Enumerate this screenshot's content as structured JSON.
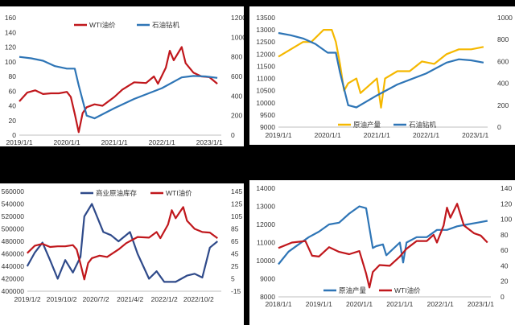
{
  "colors": {
    "wti": "#c0171c",
    "rigs": "#2e75b6",
    "production": "#f5b800",
    "inventory": "#2f4a8a"
  },
  "chart_data": [
    {
      "type": "line",
      "title": "",
      "legend": "top-center",
      "x_ticks": [
        "2019/1/1",
        "2020/1/1",
        "2021/1/1",
        "2022/1/1",
        "2023/1/1"
      ],
      "x_range": [
        "2019-01-01",
        "2023-04-01"
      ],
      "yleft_ticks": [
        "0",
        "20",
        "40",
        "60",
        "80",
        "100",
        "120",
        "140",
        "160"
      ],
      "yleft_lim": [
        0,
        160
      ],
      "yright_ticks": [
        "0",
        "200",
        "400",
        "600",
        "800",
        "1000",
        "1200"
      ],
      "yright_lim": [
        0,
        1200
      ],
      "series": [
        {
          "name": "WTI油价",
          "axis": "left",
          "color": "#c0171c",
          "x": [
            "2019-01",
            "2019-03",
            "2019-05",
            "2019-07",
            "2019-09",
            "2019-11",
            "2020-01",
            "2020-02",
            "2020-03",
            "2020-04",
            "2020-05",
            "2020-06",
            "2020-08",
            "2020-10",
            "2021-01",
            "2021-03",
            "2021-06",
            "2021-09",
            "2021-11",
            "2021-12",
            "2022-02",
            "2022-03",
            "2022-04",
            "2022-06",
            "2022-07",
            "2022-09",
            "2022-11",
            "2023-01",
            "2023-03"
          ],
          "y": [
            46,
            58,
            61,
            56,
            57,
            57,
            59,
            52,
            29,
            4,
            30,
            38,
            42,
            40,
            52,
            62,
            72,
            71,
            80,
            70,
            92,
            115,
            102,
            120,
            98,
            85,
            80,
            79,
            70
          ]
        },
        {
          "name": "石油钻机",
          "axis": "right",
          "color": "#2e75b6",
          "x": [
            "2019-01",
            "2019-04",
            "2019-07",
            "2019-10",
            "2020-01",
            "2020-03",
            "2020-04",
            "2020-06",
            "2020-08",
            "2021-01",
            "2021-06",
            "2022-01",
            "2022-06",
            "2022-09",
            "2022-12",
            "2023-03"
          ],
          "y": [
            800,
            785,
            760,
            705,
            680,
            680,
            510,
            200,
            172,
            275,
            370,
            480,
            590,
            605,
            600,
            585
          ]
        }
      ]
    },
    {
      "type": "line",
      "title": "",
      "legend": "bottom-center",
      "x_ticks": [
        "2019/1/1",
        "2020/1/1",
        "2021/1/1",
        "2022/1/1",
        "2023/1/1"
      ],
      "x_range": [
        "2019-01-01",
        "2023-04-01"
      ],
      "yleft_ticks": [
        "9000",
        "9500",
        "10000",
        "10500",
        "11000",
        "11500",
        "12000",
        "12500",
        "13000",
        "13500"
      ],
      "yleft_lim": [
        9000,
        13500
      ],
      "yright_ticks": [
        "0",
        "200",
        "400",
        "600",
        "800",
        "1000"
      ],
      "yright_lim": [
        0,
        1000
      ],
      "series": [
        {
          "name": "原油产量",
          "axis": "left",
          "color": "#f5b800",
          "x": [
            "2019-01",
            "2019-04",
            "2019-07",
            "2019-09",
            "2019-12",
            "2020-02",
            "2020-03",
            "2020-04",
            "2020-05",
            "2020-06",
            "2020-08",
            "2020-09",
            "2021-01",
            "2021-02",
            "2021-03",
            "2021-06",
            "2021-09",
            "2021-12",
            "2022-03",
            "2022-06",
            "2022-09",
            "2022-12",
            "2023-03"
          ],
          "y": [
            11900,
            12200,
            12500,
            12500,
            13000,
            13000,
            12500,
            11600,
            10500,
            10800,
            11000,
            10400,
            11000,
            9800,
            11000,
            11300,
            11300,
            11700,
            11600,
            12000,
            12200,
            12200,
            12300
          ]
        },
        {
          "name": "石油钻机",
          "axis": "right",
          "color": "#2e75b6",
          "x": [
            "2019-01",
            "2019-04",
            "2019-07",
            "2019-10",
            "2020-01",
            "2020-03",
            "2020-04",
            "2020-06",
            "2020-08",
            "2021-01",
            "2021-06",
            "2022-01",
            "2022-06",
            "2022-09",
            "2022-12",
            "2023-03"
          ],
          "y": [
            860,
            840,
            810,
            760,
            680,
            680,
            500,
            200,
            180,
            290,
            390,
            490,
            590,
            620,
            610,
            590
          ]
        }
      ]
    },
    {
      "type": "line",
      "title": "",
      "legend": "top-center",
      "x_ticks": [
        "2019/1/2",
        "2019/10/2",
        "2020/7/2",
        "2021/4/2",
        "2022/1/2",
        "2022/10/2"
      ],
      "x_range": [
        "2019-01-02",
        "2023-04-01"
      ],
      "yleft_ticks": [
        "400000",
        "420000",
        "440000",
        "460000",
        "480000",
        "500000",
        "520000",
        "540000",
        "560000"
      ],
      "yleft_lim": [
        400000,
        560000
      ],
      "yright_ticks": [
        "-15",
        "5",
        "25",
        "45",
        "65",
        "85",
        "105",
        "125",
        "145"
      ],
      "yright_lim": [
        -15,
        145
      ],
      "series": [
        {
          "name": "商业原油库存",
          "axis": "left",
          "color": "#2f4a8a",
          "x": [
            "2019-01",
            "2019-03",
            "2019-05",
            "2019-07",
            "2019-09",
            "2019-11",
            "2020-01",
            "2020-03",
            "2020-04",
            "2020-06",
            "2020-09",
            "2020-11",
            "2021-01",
            "2021-04",
            "2021-06",
            "2021-09",
            "2021-11",
            "2022-01",
            "2022-04",
            "2022-07",
            "2022-09",
            "2022-11",
            "2023-01",
            "2023-03"
          ],
          "y": [
            440000,
            462000,
            478000,
            450000,
            420000,
            450000,
            430000,
            455000,
            520000,
            540000,
            495000,
            490000,
            480000,
            495000,
            460000,
            420000,
            432000,
            415000,
            415000,
            425000,
            428000,
            422000,
            470000,
            480000
          ]
        },
        {
          "name": "WTI油价",
          "axis": "right",
          "color": "#c0171c",
          "x": [
            "2019-01",
            "2019-03",
            "2019-05",
            "2019-07",
            "2019-09",
            "2019-11",
            "2020-01",
            "2020-02",
            "2020-03",
            "2020-04",
            "2020-05",
            "2020-06",
            "2020-08",
            "2020-10",
            "2021-01",
            "2021-03",
            "2021-06",
            "2021-09",
            "2021-11",
            "2021-12",
            "2022-02",
            "2022-03",
            "2022-04",
            "2022-06",
            "2022-07",
            "2022-09",
            "2022-11",
            "2023-01",
            "2023-03"
          ],
          "y": [
            46,
            58,
            61,
            56,
            57,
            57,
            59,
            52,
            29,
            4,
            30,
            38,
            42,
            40,
            52,
            62,
            72,
            71,
            80,
            70,
            92,
            115,
            102,
            120,
            98,
            85,
            80,
            79,
            70
          ]
        }
      ]
    },
    {
      "type": "line",
      "title": "",
      "legend": "bottom-center",
      "x_ticks": [
        "2018/1/1",
        "2019/1/1",
        "2020/1/1",
        "2021/1/1",
        "2022/1/1",
        "2023/1/1"
      ],
      "x_range": [
        "2018-01-01",
        "2023-04-01"
      ],
      "yleft_ticks": [
        "8000",
        "9000",
        "10000",
        "11000",
        "12000",
        "13000",
        "14000"
      ],
      "yleft_lim": [
        8000,
        14000
      ],
      "yright_ticks": [
        "0",
        "20",
        "40",
        "60",
        "80",
        "100",
        "120",
        "140"
      ],
      "yright_lim": [
        0,
        140
      ],
      "series": [
        {
          "name": "原油产量",
          "axis": "left",
          "color": "#2e75b6",
          "x": [
            "2018-01",
            "2018-04",
            "2018-07",
            "2018-10",
            "2019-01",
            "2019-04",
            "2019-07",
            "2019-10",
            "2020-01",
            "2020-03",
            "2020-04",
            "2020-05",
            "2020-06",
            "2020-08",
            "2020-09",
            "2021-01",
            "2021-02",
            "2021-03",
            "2021-06",
            "2021-09",
            "2021-12",
            "2022-03",
            "2022-06",
            "2022-09",
            "2022-12",
            "2023-03"
          ],
          "y": [
            9800,
            10500,
            10900,
            11300,
            11600,
            12000,
            12100,
            12600,
            13000,
            12900,
            11800,
            10700,
            10800,
            10900,
            10300,
            11000,
            9900,
            11000,
            11300,
            11300,
            11700,
            11700,
            11900,
            12000,
            12100,
            12200
          ]
        },
        {
          "name": "WTI油价",
          "axis": "right",
          "color": "#c0171c",
          "x": [
            "2018-01",
            "2018-05",
            "2018-09",
            "2018-11",
            "2019-01",
            "2019-04",
            "2019-07",
            "2019-10",
            "2020-01",
            "2020-03",
            "2020-04",
            "2020-05",
            "2020-07",
            "2020-10",
            "2021-01",
            "2021-03",
            "2021-06",
            "2021-09",
            "2021-11",
            "2021-12",
            "2022-02",
            "2022-03",
            "2022-04",
            "2022-06",
            "2022-08",
            "2022-11",
            "2023-01",
            "2023-03"
          ],
          "y": [
            63,
            70,
            72,
            53,
            52,
            64,
            58,
            55,
            59,
            30,
            12,
            32,
            41,
            40,
            52,
            62,
            72,
            72,
            80,
            70,
            92,
            115,
            102,
            120,
            92,
            82,
            79,
            70
          ]
        }
      ]
    }
  ]
}
